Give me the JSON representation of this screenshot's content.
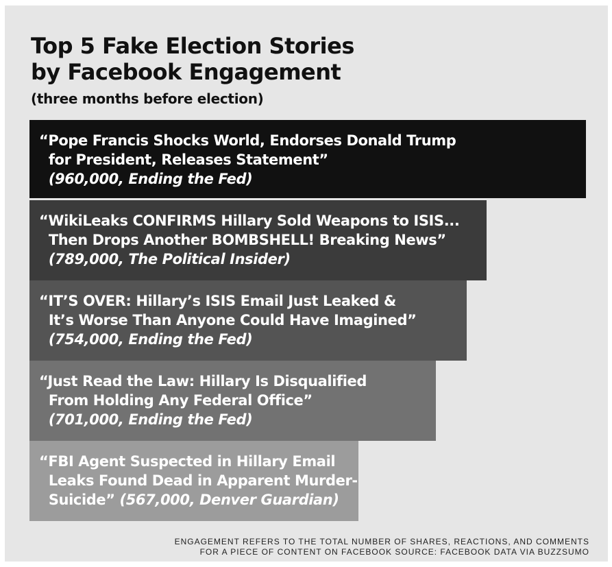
{
  "title_line1": "Top 5 Fake Election Stories",
  "title_line2": "by Facebook Engagement",
  "subtitle": "(three months before election)",
  "footnote_line1": "ENGAGEMENT REFERS TO THE TOTAL NUMBER OF SHARES, REACTIONS, AND COMMENTS",
  "footnote_line2": "FOR A PIECE OF CONTENT ON FACEBOOK SOURCE: FACEBOOK DATA VIA BUZZSUMO",
  "colors": {
    "background": "#e6e6e6",
    "bar_shades": [
      "#111111",
      "#3b3b3b",
      "#545454",
      "#727272",
      "#9c9c9c"
    ],
    "text": "#ffffff"
  },
  "chart_data": {
    "type": "bar",
    "orientation": "horizontal",
    "title": "Top 5 Fake Election Stories by Facebook Engagement",
    "subtitle": "(three months before election)",
    "grid": false,
    "legend": "none",
    "xlim": [
      0,
      960000
    ],
    "categories": [
      "Pope Francis Shocks World, Endorses Donald Trump for President, Releases Statement",
      "WikiLeaks CONFIRMS Hillary Sold Weapons to ISIS... Then Drops Another BOMBSHELL! Breaking News",
      "IT'S OVER: Hillary's ISIS Email Just Leaked & It's Worse Than Anyone Could Have Imagined",
      "Just Read the Law: Hillary Is Disqualified From Holding Any Federal Office",
      "FBI Agent Suspected in Hillary Email Leaks Found Dead in Apparent Murder-Suicide"
    ],
    "values": [
      960000,
      789000,
      754000,
      701000,
      567000
    ],
    "sources": [
      "Ending the Fed",
      "The Political Insider",
      "Ending the Fed",
      "Ending the Fed",
      "Denver Guardian"
    ],
    "labels": [
      {
        "lines": [
          "“Pope Francis Shocks World, Endorses Donald Trump",
          "  for President, Releases Statement”"
        ],
        "meta": "  (960,000, Ending the Fed)"
      },
      {
        "lines": [
          "“WikiLeaks CONFIRMS Hillary Sold Weapons to ISIS...",
          "  Then Drops Another BOMBSHELL! Breaking News”"
        ],
        "meta": "  (789,000, The Political Insider)"
      },
      {
        "lines": [
          "“IT’S OVER: Hillary’s ISIS Email Just Leaked &",
          "  It’s Worse Than Anyone Could Have Imagined”"
        ],
        "meta": "  (754,000, Ending the Fed)"
      },
      {
        "lines": [
          "“Just Read the Law: Hillary Is Disqualified",
          "  From Holding Any Federal Office”"
        ],
        "meta": "  (701,000, Ending the Fed)"
      },
      {
        "lines": [
          "“FBI Agent Suspected in Hillary Email",
          "  Leaks Found Dead in Apparent Murder-",
          "  Suicide” "
        ],
        "meta": "(567,000, Denver Guardian)"
      }
    ]
  }
}
